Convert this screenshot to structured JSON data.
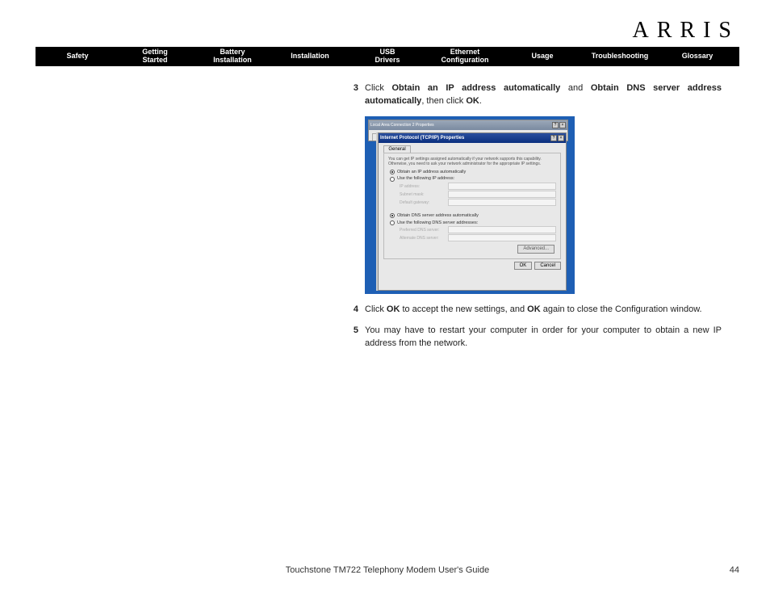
{
  "logo": "ARRIS",
  "nav": [
    "Safety",
    "Getting\nStarted",
    "Battery\nInstallation",
    "Installation",
    "USB\nDrivers",
    "Ethernet\nConfiguration",
    "Usage",
    "Troubleshooting",
    "Glossary"
  ],
  "steps": {
    "s3": {
      "num": "3",
      "pre": "Click ",
      "b1": "Obtain an IP address automatically",
      "mid": " and ",
      "b2": "Obtain DNS server ad­dress automatically",
      "mid2": ", then click ",
      "b3": "OK",
      "post": "."
    },
    "s4": {
      "num": "4",
      "pre": "Click ",
      "b1": "OK",
      "mid": " to accept the new settings, and ",
      "b2": "OK",
      "post": " again to close the Configura­tion window."
    },
    "s5": {
      "num": "5",
      "text": "You may have to restart your computer in order for your computer to obtain a new IP address from the network."
    }
  },
  "dialog": {
    "outer_title": "Local Area Connection 2 Properties",
    "outer_tab": "General",
    "inner_title": "Internet Protocol (TCP/IP) Properties",
    "inner_tab": "General",
    "desc": "You can get IP settings assigned automatically if your network supports this capability. Otherwise, you need to ask your network administrator for the appropriate IP settings.",
    "r1": "Obtain an IP address automatically",
    "r2": "Use the following IP address:",
    "f_ip": "IP address:",
    "f_mask": "Subnet mask:",
    "f_gw": "Default gateway:",
    "r3": "Obtain DNS server address automatically",
    "r4": "Use the following DNS server addresses:",
    "f_pdns": "Preferred DNS server:",
    "f_adns": "Alternate DNS server:",
    "btn_adv": "Advanced...",
    "btn_ok": "OK",
    "btn_cancel": "Cancel",
    "close_x": "×",
    "qmark": "?"
  },
  "footer": {
    "title": "Touchstone TM722 Telephony Modem User's Guide",
    "page": "44"
  }
}
